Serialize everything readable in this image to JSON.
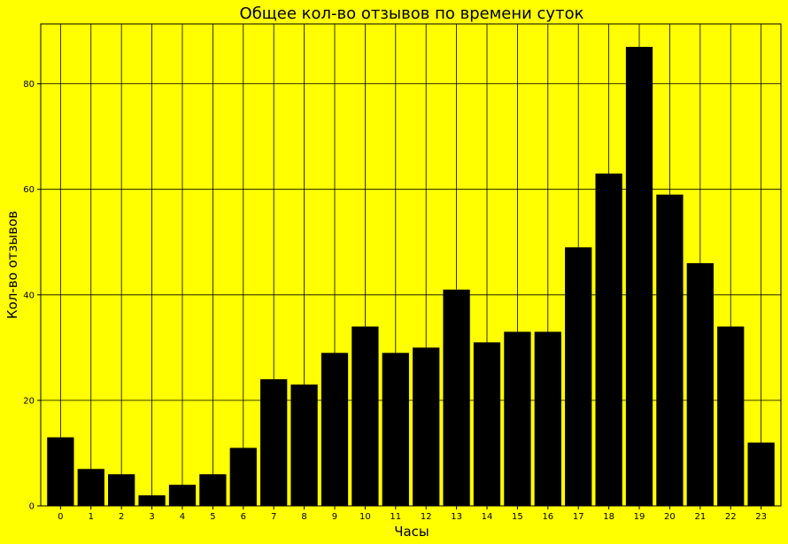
{
  "chart_data": {
    "type": "bar",
    "title": "Общее кол-во отзывов по времени суток",
    "xlabel": "Часы",
    "ylabel": "Кол-во отзывов",
    "categories": [
      "0",
      "1",
      "2",
      "3",
      "4",
      "5",
      "6",
      "7",
      "8",
      "9",
      "10",
      "11",
      "12",
      "13",
      "14",
      "15",
      "16",
      "17",
      "18",
      "19",
      "20",
      "21",
      "22",
      "23"
    ],
    "values": [
      13,
      7,
      6,
      2,
      4,
      6,
      11,
      24,
      23,
      29,
      34,
      29,
      30,
      41,
      31,
      33,
      33,
      49,
      63,
      87,
      59,
      46,
      34,
      12
    ],
    "ylim": [
      0,
      91.35
    ],
    "yticks": [
      0,
      20,
      40,
      60,
      80
    ],
    "grid": true,
    "colors": {
      "background": "#ffff00",
      "bar": "#000000",
      "grid": "#000000",
      "text": "#000000"
    }
  }
}
